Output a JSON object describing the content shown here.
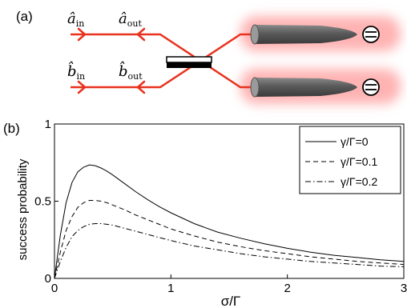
{
  "panel_a": {
    "label": "(a)",
    "ports": {
      "a_in": "â",
      "a_in_sub": "in",
      "a_out": "â",
      "a_out_sub": "out",
      "b_in": "b̂",
      "b_in_sub": "in",
      "b_out": "b̂",
      "b_out_sub": "out"
    },
    "colors": {
      "beam": "#e8321e",
      "glow": "#ff9a9a",
      "fiber": "#6e6e6e",
      "splitter": "#000000"
    }
  },
  "panel_b": {
    "label": "(b)"
  },
  "chart_data": {
    "type": "line",
    "xlabel": "σ/Γ",
    "ylabel": "success probability",
    "xlim": [
      0,
      3
    ],
    "ylim": [
      0,
      1
    ],
    "x_ticks": [
      "0",
      "1",
      "2",
      "3"
    ],
    "y_ticks": [
      "0",
      "0.5",
      "1"
    ],
    "legend_position": "top-right",
    "grid": false,
    "series": [
      {
        "name": "γ/Γ=0",
        "style": "solid",
        "x": [
          0,
          0.05,
          0.1,
          0.15,
          0.2,
          0.25,
          0.3,
          0.35,
          0.4,
          0.45,
          0.5,
          0.6,
          0.7,
          0.8,
          0.9,
          1.0,
          1.2,
          1.4,
          1.6,
          1.8,
          2.0,
          2.2,
          2.4,
          2.6,
          2.8,
          3.0
        ],
        "y": [
          0,
          0.28,
          0.49,
          0.62,
          0.69,
          0.72,
          0.735,
          0.73,
          0.715,
          0.695,
          0.67,
          0.615,
          0.56,
          0.51,
          0.465,
          0.425,
          0.355,
          0.3,
          0.26,
          0.225,
          0.195,
          0.17,
          0.15,
          0.135,
          0.12,
          0.11
        ]
      },
      {
        "name": "γ/Γ=0.1",
        "style": "dashed",
        "x": [
          0,
          0.05,
          0.1,
          0.15,
          0.2,
          0.25,
          0.3,
          0.35,
          0.4,
          0.45,
          0.5,
          0.6,
          0.7,
          0.8,
          0.9,
          1.0,
          1.2,
          1.4,
          1.6,
          1.8,
          2.0,
          2.2,
          2.4,
          2.6,
          2.8,
          3.0
        ],
        "y": [
          0,
          0.17,
          0.31,
          0.4,
          0.46,
          0.49,
          0.505,
          0.505,
          0.5,
          0.49,
          0.475,
          0.445,
          0.41,
          0.38,
          0.35,
          0.32,
          0.275,
          0.235,
          0.205,
          0.18,
          0.16,
          0.14,
          0.125,
          0.11,
          0.1,
          0.09
        ]
      },
      {
        "name": "γ/Γ=0.2",
        "style": "dash-dot",
        "x": [
          0,
          0.05,
          0.1,
          0.15,
          0.2,
          0.25,
          0.3,
          0.35,
          0.4,
          0.45,
          0.5,
          0.6,
          0.7,
          0.8,
          0.9,
          1.0,
          1.2,
          1.4,
          1.6,
          1.8,
          2.0,
          2.2,
          2.4,
          2.6,
          2.8,
          3.0
        ],
        "y": [
          0,
          0.11,
          0.2,
          0.27,
          0.31,
          0.335,
          0.35,
          0.355,
          0.355,
          0.35,
          0.345,
          0.325,
          0.305,
          0.285,
          0.265,
          0.245,
          0.21,
          0.185,
          0.16,
          0.14,
          0.125,
          0.11,
          0.1,
          0.09,
          0.08,
          0.075
        ]
      }
    ]
  }
}
